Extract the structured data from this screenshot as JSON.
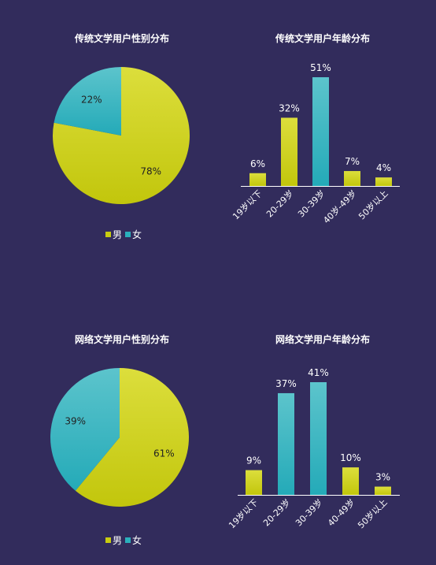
{
  "colors": {
    "male_light": "#dcde3c",
    "male_dark": "#c2c60c",
    "female_light": "#5cc4cc",
    "female_dark": "#24aab8",
    "axis": "#ffffff"
  },
  "chart_data": [
    {
      "type": "pie",
      "title": "传统文学用户性别分布",
      "slices": [
        {
          "name": "男",
          "value": 78,
          "label": "78%"
        },
        {
          "name": "女",
          "value": 22,
          "label": "22%"
        }
      ],
      "legend": [
        "男",
        "女"
      ],
      "legend_placement": "bottom"
    },
    {
      "type": "bar",
      "title": "传统文学用户年龄分布",
      "categories": [
        "19岁以下",
        "20-29岁",
        "30-39岁",
        "40岁-49岁",
        "50岁以上"
      ],
      "values": [
        6,
        32,
        51,
        7,
        4
      ],
      "value_labels": [
        "6%",
        "32%",
        "51%",
        "7%",
        "4%"
      ],
      "highlight_index": 2,
      "ylim": [
        0,
        51
      ]
    },
    {
      "type": "pie",
      "title": "网络文学用户性别分布",
      "slices": [
        {
          "name": "男",
          "value": 61,
          "label": "61%"
        },
        {
          "name": "女",
          "value": 39,
          "label": "39%"
        }
      ],
      "legend": [
        "男",
        "女"
      ],
      "legend_placement": "bottom"
    },
    {
      "type": "bar",
      "title": "网络文学用户年龄分布",
      "categories": [
        "19岁以下",
        "20-29岁",
        "30-39岁",
        "40-49岁",
        "50岁以上"
      ],
      "values": [
        9,
        37,
        41,
        10,
        3
      ],
      "value_labels": [
        "9%",
        "37%",
        "41%",
        "10%",
        "3%"
      ],
      "highlight_indices": [
        1,
        2
      ],
      "ylim": [
        0,
        41
      ]
    }
  ]
}
